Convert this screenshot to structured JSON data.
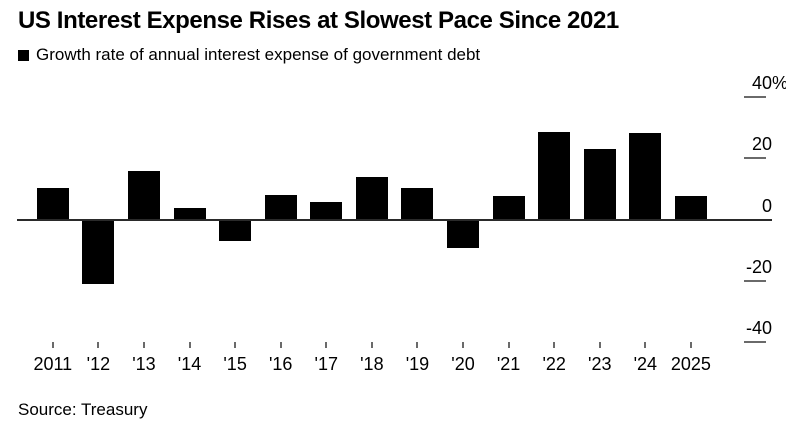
{
  "title": "US Interest Expense Rises at Slowest Pace Since 2021",
  "legend": {
    "label": "Growth rate of annual interest expense of government debt"
  },
  "source": "Source: Treasury",
  "colors": {
    "background": "#ffffff",
    "bar": "#000000",
    "text": "#000000",
    "axis_line": "#2a2a2a",
    "tick": "#6a6a6a"
  },
  "chart_data": {
    "type": "bar",
    "title": "US Interest Expense Rises at Slowest Pace Since 2021",
    "series_label": "Growth rate of annual interest expense of government debt",
    "categories": [
      "2011",
      "'12",
      "'13",
      "'14",
      "'15",
      "'16",
      "'17",
      "'18",
      "'19",
      "'20",
      "'21",
      "'22",
      "'23",
      "'24",
      "2025"
    ],
    "values": [
      10.2,
      -21.1,
      15.9,
      3.8,
      -7.0,
      8.0,
      5.8,
      13.9,
      10.2,
      -9.2,
      7.8,
      28.4,
      23.0,
      28.1,
      7.8
    ],
    "unit": "%",
    "xlabel": "",
    "ylabel": "",
    "ylim": [
      -40,
      40
    ],
    "grid": false,
    "legend_position": "top-left",
    "y_ticks": [
      {
        "value": 40,
        "label": "40",
        "suffix": "%"
      },
      {
        "value": 20,
        "label": "20",
        "suffix": ""
      },
      {
        "value": 0,
        "label": "0",
        "suffix": ""
      },
      {
        "value": -20,
        "label": "-20",
        "suffix": ""
      },
      {
        "value": -40,
        "label": "-40",
        "suffix": ""
      }
    ]
  }
}
